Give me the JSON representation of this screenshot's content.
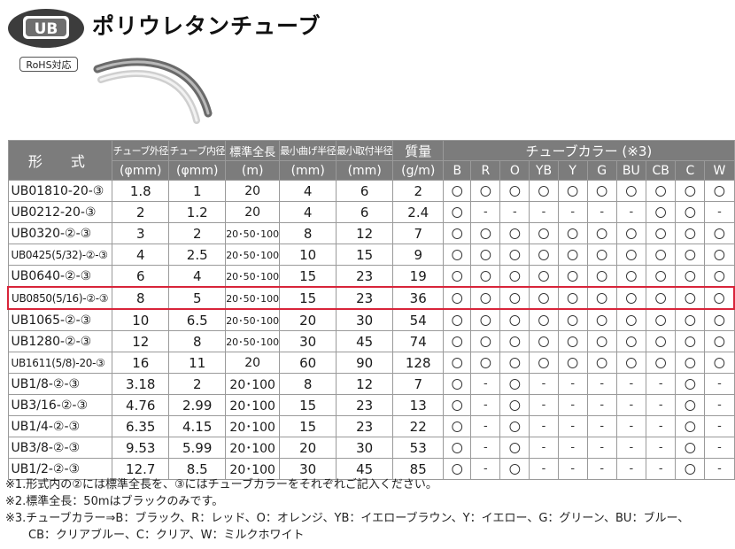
{
  "header": {
    "badge": "UB",
    "title": "ポリウレタンチューブ",
    "rohs": "RoHS対応"
  },
  "table": {
    "columns": {
      "model": "形　式",
      "od": "チューブ外径",
      "od_unit": "(φmm)",
      "id": "チューブ内径",
      "id_unit": "(φmm)",
      "length": "標準全長",
      "length_unit": "(m)",
      "bend": "最小曲げ半径",
      "bend_unit": "(mm)",
      "mount": "最小取付半径",
      "mount_unit": "(mm)",
      "mass": "質量",
      "mass_unit": "(g/m)",
      "colors_title": "チューブカラー (※3)",
      "colors": [
        "B",
        "R",
        "O",
        "YB",
        "Y",
        "G",
        "BU",
        "CB",
        "C",
        "W"
      ]
    },
    "rows": [
      {
        "model": "UB01810-20-③",
        "od": "1.8",
        "id": "1",
        "length": "20",
        "bend": "4",
        "mount": "6",
        "mass": "2",
        "marks": [
          "〇",
          "〇",
          "〇",
          "〇",
          "〇",
          "〇",
          "〇",
          "〇",
          "〇",
          "〇"
        ]
      },
      {
        "model": "UB0212-20-③",
        "od": "2",
        "id": "1.2",
        "length": "20",
        "bend": "4",
        "mount": "6",
        "mass": "2.4",
        "marks": [
          "〇",
          "-",
          "-",
          "-",
          "-",
          "-",
          "-",
          "〇",
          "〇",
          "-"
        ]
      },
      {
        "model": "UB0320-②-③",
        "od": "3",
        "id": "2",
        "length": "20･50･100",
        "bend": "8",
        "mount": "12",
        "mass": "7",
        "marks": [
          "〇",
          "〇",
          "〇",
          "〇",
          "〇",
          "〇",
          "〇",
          "〇",
          "〇",
          "〇"
        ]
      },
      {
        "model": "UB0425(5/32)-②-③",
        "od": "4",
        "id": "2.5",
        "length": "20･50･100",
        "bend": "10",
        "mount": "15",
        "mass": "9",
        "marks": [
          "〇",
          "〇",
          "〇",
          "〇",
          "〇",
          "〇",
          "〇",
          "〇",
          "〇",
          "〇"
        ]
      },
      {
        "model": "UB0640-②-③",
        "od": "6",
        "id": "4",
        "length": "20･50･100",
        "bend": "15",
        "mount": "23",
        "mass": "19",
        "marks": [
          "〇",
          "〇",
          "〇",
          "〇",
          "〇",
          "〇",
          "〇",
          "〇",
          "〇",
          "〇"
        ]
      },
      {
        "model": "UB0850(5/16)-②-③",
        "od": "8",
        "id": "5",
        "length": "20･50･100",
        "bend": "15",
        "mount": "23",
        "mass": "36",
        "marks": [
          "〇",
          "〇",
          "〇",
          "〇",
          "〇",
          "〇",
          "〇",
          "〇",
          "〇",
          "〇"
        ]
      },
      {
        "model": "UB1065-②-③",
        "od": "10",
        "id": "6.5",
        "length": "20･50･100",
        "bend": "20",
        "mount": "30",
        "mass": "54",
        "marks": [
          "〇",
          "〇",
          "〇",
          "〇",
          "〇",
          "〇",
          "〇",
          "〇",
          "〇",
          "〇"
        ]
      },
      {
        "model": "UB1280-②-③",
        "od": "12",
        "id": "8",
        "length": "20･50･100",
        "bend": "30",
        "mount": "45",
        "mass": "74",
        "marks": [
          "〇",
          "〇",
          "〇",
          "〇",
          "〇",
          "〇",
          "〇",
          "〇",
          "〇",
          "〇"
        ]
      },
      {
        "model": "UB1611(5/8)-20-③",
        "od": "16",
        "id": "11",
        "length": "20",
        "bend": "60",
        "mount": "90",
        "mass": "128",
        "marks": [
          "〇",
          "〇",
          "〇",
          "〇",
          "〇",
          "〇",
          "〇",
          "〇",
          "〇",
          "〇"
        ]
      },
      {
        "model": "UB1/8-②-③",
        "od": "3.18",
        "id": "2",
        "length": "20･100",
        "bend": "8",
        "mount": "12",
        "mass": "7",
        "marks": [
          "〇",
          "-",
          "〇",
          "-",
          "-",
          "-",
          "-",
          "-",
          "〇",
          "-"
        ]
      },
      {
        "model": "UB3/16-②-③",
        "od": "4.76",
        "id": "2.99",
        "length": "20･100",
        "bend": "15",
        "mount": "23",
        "mass": "13",
        "marks": [
          "〇",
          "-",
          "〇",
          "-",
          "-",
          "-",
          "-",
          "-",
          "〇",
          "-"
        ]
      },
      {
        "model": "UB1/4-②-③",
        "od": "6.35",
        "id": "4.15",
        "length": "20･100",
        "bend": "15",
        "mount": "23",
        "mass": "22",
        "marks": [
          "〇",
          "-",
          "〇",
          "-",
          "-",
          "-",
          "-",
          "-",
          "〇",
          "-"
        ]
      },
      {
        "model": "UB3/8-②-③",
        "od": "9.53",
        "id": "5.99",
        "length": "20･100",
        "bend": "20",
        "mount": "30",
        "mass": "53",
        "marks": [
          "〇",
          "-",
          "〇",
          "-",
          "-",
          "-",
          "-",
          "-",
          "〇",
          "-"
        ]
      },
      {
        "model": "UB1/2-②-③",
        "od": "12.7",
        "id": "8.5",
        "length": "20･100",
        "bend": "30",
        "mount": "45",
        "mass": "85",
        "marks": [
          "〇",
          "-",
          "〇",
          "-",
          "-",
          "-",
          "-",
          "-",
          "〇",
          "-"
        ]
      }
    ],
    "highlight_row": 5,
    "highlight_color": "#d8243a"
  },
  "notes": [
    "※1.形式内の②には標準全長を、③にはチューブカラーをそれぞれご記入ください。",
    "※2.標準全長：50mはブラックのみです。",
    "※3.チューブカラー⇒B：ブラック、R：レッド、O：オレンジ、YB：イエローブラウン、Y：イエロー、G：グリーン、BU：ブルー、",
    "CB：クリアブルー、C：クリア、W：ミルクホワイト"
  ]
}
